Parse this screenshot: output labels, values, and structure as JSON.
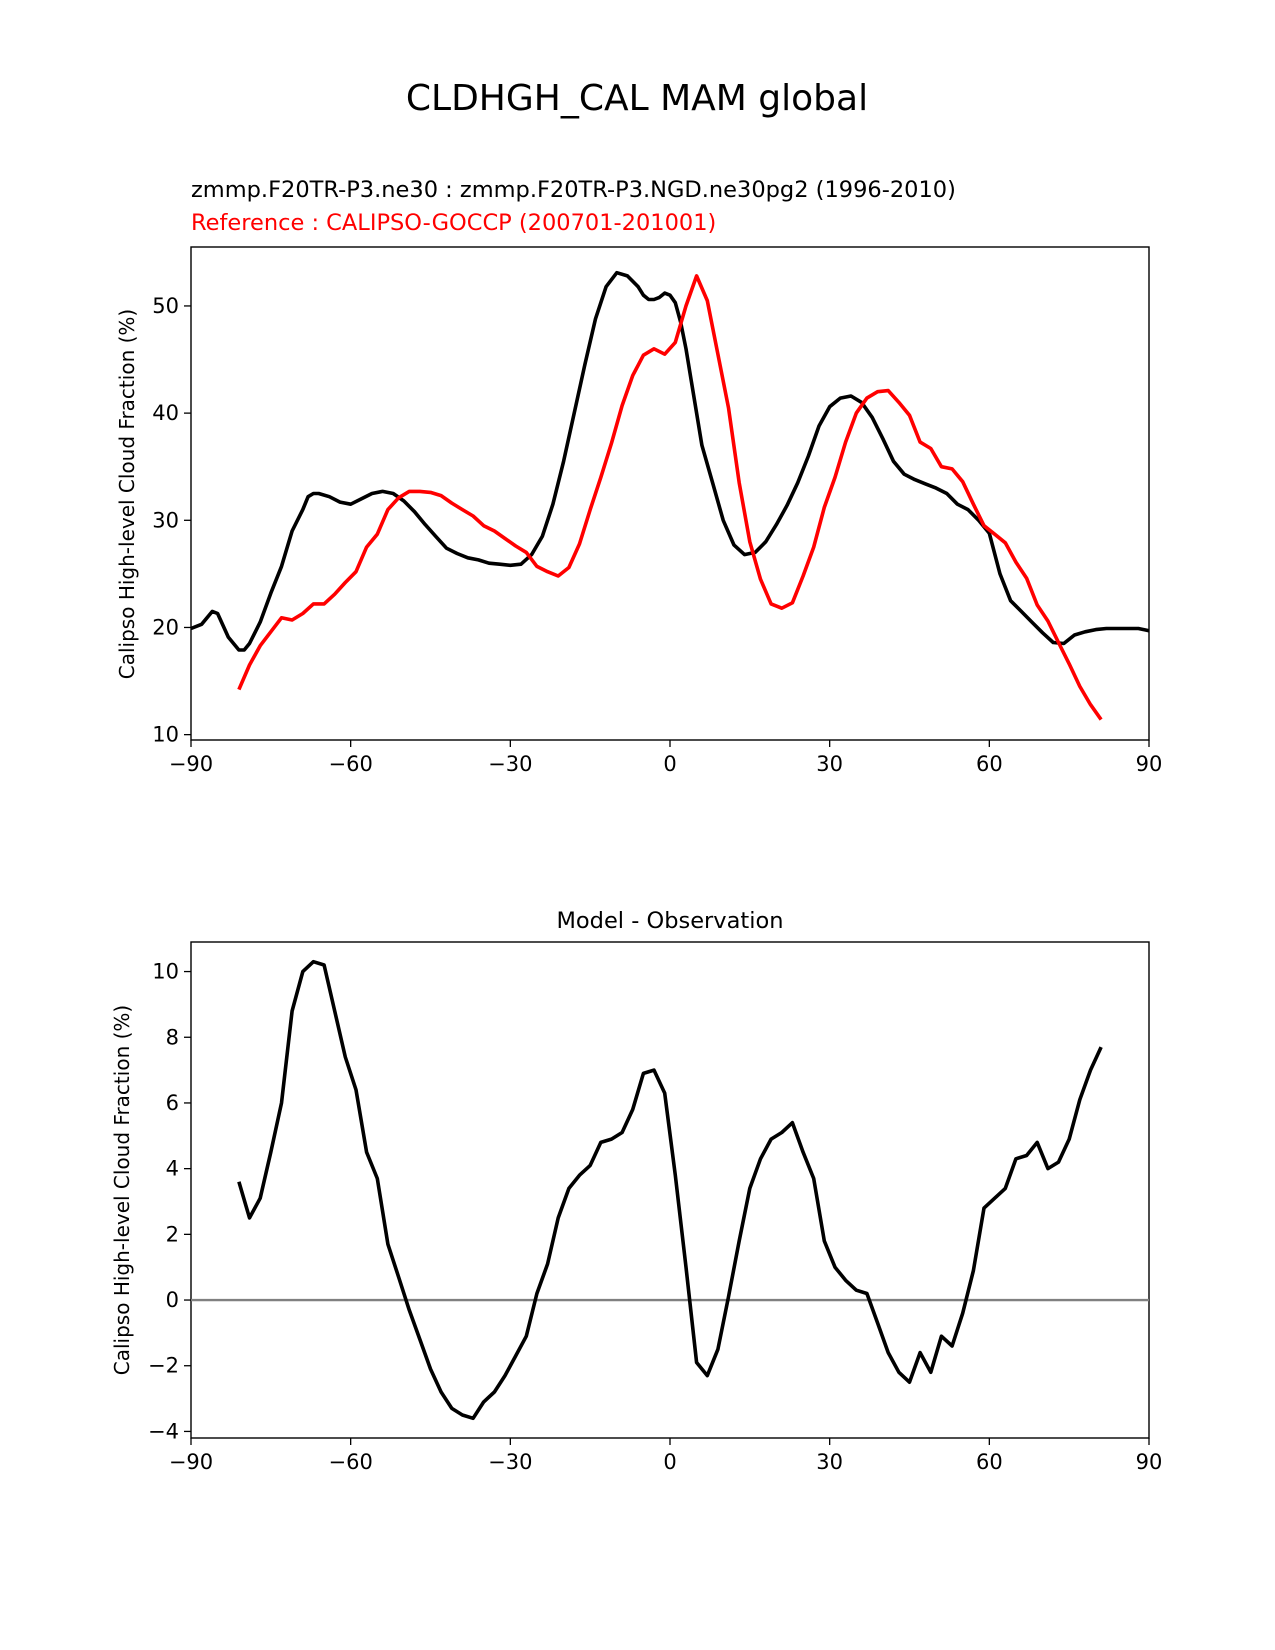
{
  "title": "CLDHGH_CAL MAM global",
  "chart_data": [
    {
      "type": "line",
      "name": "zonal-mean",
      "title_test": "zmmp.F20TR-P3.ne30 : zmmp.F20TR-P3.NGD.ne30pg2 (1996-2010)",
      "title_ref": "Reference : CALIPSO-GOCCP (200701-201001)",
      "xlabel": "",
      "ylabel": "Calipso High-level Cloud Fraction (%)",
      "xlim": [
        -90,
        90
      ],
      "ylim": [
        9.5,
        55.5
      ],
      "xticks": [
        "−90",
        "−60",
        "−30",
        "0",
        "30",
        "60",
        "90"
      ],
      "xtick_values": [
        -90,
        -60,
        -30,
        0,
        30,
        60,
        90
      ],
      "yticks": [
        "10",
        "20",
        "30",
        "40",
        "50"
      ],
      "ytick_values": [
        10,
        20,
        30,
        40,
        50
      ],
      "series": [
        {
          "name": "test",
          "color": "#000000",
          "x": [
            -90,
            -88,
            -86,
            -85,
            -83,
            -81,
            -80,
            -79,
            -77,
            -75,
            -73,
            -71,
            -69,
            -68,
            -67,
            -66,
            -64,
            -62,
            -60,
            -58,
            -56,
            -54,
            -52,
            -50,
            -48,
            -46,
            -44,
            -42,
            -40,
            -38,
            -36,
            -34,
            -32,
            -30,
            -28,
            -26,
            -24,
            -22,
            -20,
            -18,
            -16,
            -14,
            -12,
            -10,
            -8,
            -6,
            -5,
            -4,
            -3,
            -2,
            -1,
            0,
            1,
            2,
            3,
            4,
            5,
            6,
            8,
            10,
            12,
            14,
            16,
            18,
            20,
            22,
            24,
            26,
            28,
            30,
            32,
            34,
            36,
            38,
            40,
            42,
            44,
            46,
            48,
            50,
            52,
            54,
            56,
            58,
            60,
            62,
            64,
            66,
            68,
            70,
            72,
            74,
            76,
            78,
            80,
            82,
            84,
            86,
            88,
            90
          ],
          "values": [
            19.9,
            20.3,
            21.5,
            21.3,
            19.1,
            17.9,
            17.9,
            18.5,
            20.5,
            23.2,
            25.7,
            29.0,
            31.0,
            32.2,
            32.5,
            32.5,
            32.2,
            31.7,
            31.5,
            32.0,
            32.5,
            32.7,
            32.5,
            31.8,
            30.8,
            29.6,
            28.5,
            27.4,
            26.9,
            26.5,
            26.3,
            26.0,
            25.9,
            25.8,
            25.9,
            26.8,
            28.5,
            31.5,
            35.5,
            40.0,
            44.5,
            48.8,
            51.8,
            53.1,
            52.8,
            51.8,
            51.0,
            50.6,
            50.6,
            50.8,
            51.2,
            51.0,
            50.3,
            48.5,
            46.0,
            43.0,
            40.0,
            37.0,
            33.5,
            30.0,
            27.7,
            26.8,
            27.0,
            28.0,
            29.6,
            31.4,
            33.5,
            36.0,
            38.8,
            40.6,
            41.4,
            41.6,
            41.0,
            39.6,
            37.6,
            35.5,
            34.3,
            33.8,
            33.4,
            33.0,
            32.5,
            31.5,
            31.0,
            30.0,
            28.8,
            25.0,
            22.5,
            21.5,
            20.5,
            19.5,
            18.6,
            18.5,
            19.3,
            19.6,
            19.8,
            19.9,
            19.9,
            19.9,
            19.9,
            19.7
          ],
          "note": "x: latitude (deg); values: cloud fraction (%)"
        },
        {
          "name": "reference",
          "color": "#ff0000",
          "x": [
            -81,
            -79,
            -77,
            -75,
            -73,
            -71,
            -69,
            -67,
            -65,
            -63,
            -61,
            -59,
            -57,
            -55,
            -53,
            -51,
            -49,
            -47,
            -45,
            -43,
            -41,
            -39,
            -37,
            -35,
            -33,
            -31,
            -29,
            -27,
            -25,
            -23,
            -21,
            -19,
            -17,
            -15,
            -13,
            -11,
            -9,
            -7,
            -5,
            -3,
            -1,
            1,
            3,
            5,
            7,
            9,
            11,
            13,
            15,
            17,
            19,
            21,
            23,
            25,
            27,
            29,
            31,
            33,
            35,
            37,
            39,
            41,
            43,
            45,
            47,
            49,
            51,
            53,
            55,
            57,
            59,
            61,
            63,
            65,
            67,
            69,
            71,
            73,
            75,
            77,
            79,
            81
          ],
          "values": [
            14.2,
            16.5,
            18.3,
            19.6,
            20.9,
            20.7,
            21.3,
            22.2,
            22.2,
            23.1,
            24.2,
            25.2,
            27.5,
            28.7,
            31.0,
            32.1,
            32.7,
            32.7,
            32.6,
            32.3,
            31.6,
            31.0,
            30.4,
            29.5,
            29.0,
            28.3,
            27.6,
            27.0,
            25.7,
            25.2,
            24.8,
            25.6,
            27.8,
            31.0,
            34.0,
            37.2,
            40.7,
            43.5,
            45.4,
            46.0,
            45.5,
            46.6,
            50.0,
            52.8,
            50.5,
            45.5,
            40.5,
            33.5,
            28.0,
            24.5,
            22.2,
            21.8,
            22.3,
            24.8,
            27.5,
            31.2,
            34.0,
            37.3,
            40.0,
            41.4,
            42.0,
            42.1,
            41.0,
            39.8,
            37.3,
            36.7,
            35.0,
            34.8,
            33.6,
            31.5,
            29.5,
            28.7,
            27.9,
            26.1,
            24.6,
            22.1,
            20.6,
            18.6,
            16.6,
            14.5,
            12.8,
            11.4
          ],
          "note": "x: latitude (deg); values: cloud fraction (%)"
        }
      ]
    },
    {
      "type": "line",
      "name": "difference",
      "title": "Model - Observation",
      "xlabel": "",
      "ylabel": "Calipso High-level Cloud Fraction (%)",
      "xlim": [
        -90,
        90
      ],
      "ylim": [
        -4.2,
        10.9
      ],
      "xticks": [
        "−90",
        "−60",
        "−30",
        "0",
        "30",
        "60",
        "90"
      ],
      "xtick_values": [
        -90,
        -60,
        -30,
        0,
        30,
        60,
        90
      ],
      "yticks": [
        "−4",
        "−2",
        "0",
        "2",
        "4",
        "6",
        "8",
        "10"
      ],
      "ytick_values": [
        -4,
        -2,
        0,
        2,
        4,
        6,
        8,
        10
      ],
      "zero_line_color": "#808080",
      "series": [
        {
          "name": "model-minus-observation",
          "color": "#000000",
          "x": [
            -81,
            -79,
            -77,
            -75,
            -73,
            -71,
            -69,
            -67,
            -65,
            -63,
            -61,
            -59,
            -57,
            -55,
            -53,
            -51,
            -49,
            -47,
            -45,
            -43,
            -41,
            -39,
            -37,
            -35,
            -33,
            -31,
            -29,
            -27,
            -25,
            -23,
            -21,
            -19,
            -17,
            -15,
            -13,
            -11,
            -9,
            -7,
            -5,
            -3,
            -1,
            1,
            3,
            5,
            7,
            9,
            11,
            13,
            15,
            17,
            19,
            21,
            23,
            25,
            27,
            29,
            31,
            33,
            35,
            37,
            39,
            41,
            43,
            45,
            47,
            49,
            51,
            53,
            55,
            57,
            59,
            61,
            63,
            65,
            67,
            69,
            71,
            73,
            75,
            77,
            79,
            81
          ],
          "values": [
            3.6,
            2.5,
            3.1,
            4.5,
            6.0,
            8.8,
            10.0,
            10.3,
            10.2,
            8.8,
            7.4,
            6.4,
            4.5,
            3.7,
            1.7,
            0.7,
            -0.3,
            -1.2,
            -2.1,
            -2.8,
            -3.3,
            -3.5,
            -3.6,
            -3.1,
            -2.8,
            -2.3,
            -1.7,
            -1.1,
            0.2,
            1.1,
            2.5,
            3.4,
            3.8,
            4.1,
            4.8,
            4.9,
            5.1,
            5.8,
            6.9,
            7.0,
            6.3,
            3.8,
            1.0,
            -1.9,
            -2.3,
            -1.5,
            0.1,
            1.8,
            3.4,
            4.3,
            4.9,
            5.1,
            5.4,
            4.5,
            3.7,
            1.8,
            1.0,
            0.6,
            0.3,
            0.2,
            -0.7,
            -1.6,
            -2.2,
            -2.5,
            -1.6,
            -2.2,
            -1.1,
            -1.4,
            -0.4,
            0.9,
            2.8,
            3.1,
            3.4,
            4.3,
            4.4,
            4.8,
            4.0,
            4.2,
            4.9,
            6.1,
            7.0,
            7.7
          ],
          "note": "x: latitude (deg); values: difference (%)"
        }
      ]
    }
  ]
}
